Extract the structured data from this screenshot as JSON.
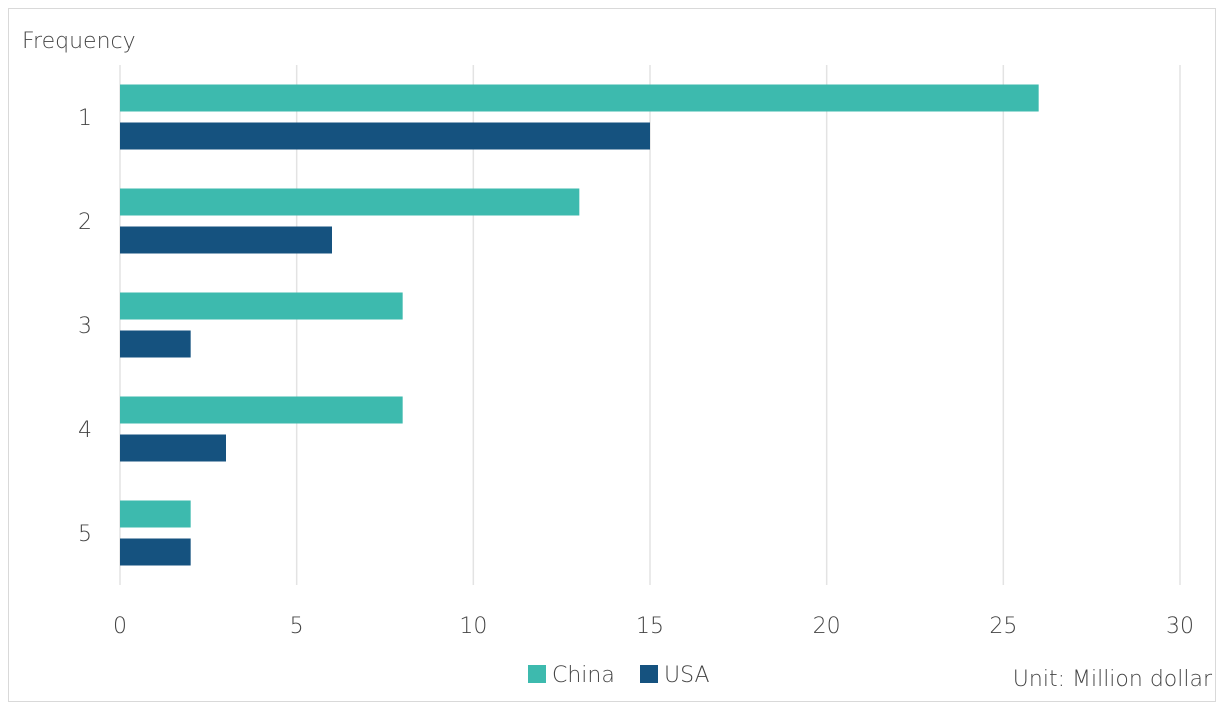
{
  "chart_data": {
    "type": "bar",
    "orientation": "horizontal",
    "ylabel": "Frequency",
    "categories": [
      "1",
      "2",
      "3",
      "4",
      "5"
    ],
    "series": [
      {
        "name": "China",
        "values": [
          26,
          13,
          8,
          8,
          2
        ],
        "color": "#3dbaae"
      },
      {
        "name": "USA",
        "values": [
          15,
          6,
          2,
          3,
          2
        ],
        "color": "#15527f"
      }
    ],
    "xlim": [
      0,
      30
    ],
    "xticks": [
      0,
      5,
      10,
      15,
      20,
      25,
      30
    ],
    "grid": "vertical",
    "legend": "bottom-center",
    "unit_note": "Unit: Million dollar"
  }
}
